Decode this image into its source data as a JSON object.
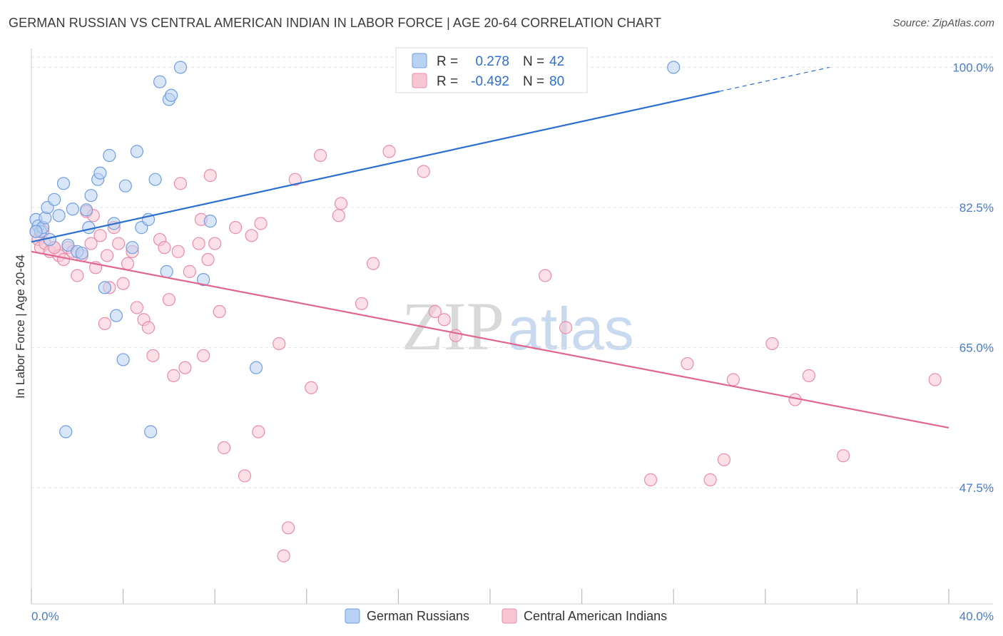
{
  "title": "GERMAN RUSSIAN VS CENTRAL AMERICAN INDIAN IN LABOR FORCE | AGE 20-64 CORRELATION CHART",
  "source": "Source: ZipAtlas.com",
  "watermark": {
    "zip": "ZIP",
    "atlas": "atlas"
  },
  "colors": {
    "blue_fill": "#b9d1f3",
    "blue_stroke": "#6f9fe0",
    "blue_line": "#2b6fcf",
    "pink_fill": "#f7c6d5",
    "pink_stroke": "#e98daa",
    "pink_line": "#e06690",
    "tick": "#4a7cc8",
    "grid": "#e3e3e3"
  },
  "legend": {
    "rows": [
      {
        "r_label": "R =",
        "r_value": "0.278",
        "n_label": "N =",
        "n_value": "42"
      },
      {
        "r_label": "R =",
        "r_value": "-0.492",
        "n_label": "N =",
        "n_value": "80"
      }
    ]
  },
  "chart_data": {
    "type": "scatter",
    "ylabel": "In Labor Force | Age 20-64",
    "xlim": [
      0,
      40
    ],
    "ylim": [
      33,
      102
    ],
    "y_ticks": [
      {
        "value": 100,
        "label": "100.0%"
      },
      {
        "value": 82.5,
        "label": "82.5%"
      },
      {
        "value": 65,
        "label": "65.0%"
      },
      {
        "value": 47.5,
        "label": "47.5%"
      }
    ],
    "x_ticks_labels": [
      {
        "value": 0,
        "label": "0.0%"
      },
      {
        "value": 40,
        "label": "40.0%"
      }
    ],
    "x_minor_ticks": [
      0,
      4,
      8,
      12,
      16,
      20,
      24,
      28,
      32,
      36,
      40
    ],
    "grid": true,
    "legend_position": "top-center",
    "series": [
      {
        "name": "German Russians",
        "trend": {
          "x0": 0,
          "y0": 78.2,
          "x1": 30,
          "y1": 97.0,
          "dash_to_x": 34.8,
          "dash_to_y": 100.0
        },
        "points": [
          [
            0.2,
            81.0
          ],
          [
            0.3,
            80.2
          ],
          [
            0.4,
            79.5
          ],
          [
            0.5,
            80.0
          ],
          [
            0.6,
            81.2
          ],
          [
            0.7,
            82.5
          ],
          [
            0.8,
            78.5
          ],
          [
            1.0,
            83.5
          ],
          [
            1.2,
            81.5
          ],
          [
            1.4,
            85.5
          ],
          [
            1.6,
            77.8
          ],
          [
            1.8,
            82.3
          ],
          [
            2.0,
            77.0
          ],
          [
            2.2,
            76.8
          ],
          [
            2.4,
            82.2
          ],
          [
            2.5,
            80.0
          ],
          [
            2.6,
            84.0
          ],
          [
            2.9,
            86.0
          ],
          [
            3.0,
            86.8
          ],
          [
            3.2,
            72.5
          ],
          [
            3.4,
            89.0
          ],
          [
            3.6,
            80.5
          ],
          [
            3.7,
            69.0
          ],
          [
            4.0,
            63.5
          ],
          [
            4.1,
            85.2
          ],
          [
            4.4,
            77.5
          ],
          [
            4.6,
            89.5
          ],
          [
            4.8,
            80.0
          ],
          [
            5.1,
            81.0
          ],
          [
            5.2,
            54.5
          ],
          [
            5.4,
            86.0
          ],
          [
            5.6,
            98.2
          ],
          [
            5.9,
            74.5
          ],
          [
            6.0,
            96.0
          ],
          [
            6.1,
            96.5
          ],
          [
            6.5,
            100.0
          ],
          [
            7.5,
            73.5
          ],
          [
            7.8,
            80.8
          ],
          [
            9.8,
            62.5
          ],
          [
            28.0,
            100.0
          ],
          [
            1.5,
            54.5
          ],
          [
            0.2,
            79.5
          ]
        ]
      },
      {
        "name": "Central American Indians",
        "trend": {
          "x0": 0,
          "y0": 77.0,
          "x1": 40,
          "y1": 55.0
        },
        "points": [
          [
            0.2,
            79.5
          ],
          [
            0.3,
            78.5
          ],
          [
            0.4,
            77.5
          ],
          [
            0.5,
            80.0
          ],
          [
            0.6,
            78.0
          ],
          [
            0.8,
            77.0
          ],
          [
            1.0,
            77.5
          ],
          [
            1.2,
            76.5
          ],
          [
            1.4,
            76.0
          ],
          [
            1.6,
            77.5
          ],
          [
            1.8,
            77.0
          ],
          [
            2.0,
            74.0
          ],
          [
            2.2,
            76.5
          ],
          [
            2.4,
            82.0
          ],
          [
            2.6,
            78.0
          ],
          [
            2.7,
            81.5
          ],
          [
            2.8,
            75.0
          ],
          [
            3.0,
            79.0
          ],
          [
            3.2,
            68.0
          ],
          [
            3.3,
            76.5
          ],
          [
            3.4,
            72.5
          ],
          [
            3.6,
            80.0
          ],
          [
            3.8,
            78.0
          ],
          [
            4.0,
            73.0
          ],
          [
            4.2,
            75.5
          ],
          [
            4.4,
            77.0
          ],
          [
            4.6,
            70.0
          ],
          [
            4.9,
            68.5
          ],
          [
            5.1,
            67.5
          ],
          [
            5.3,
            64.0
          ],
          [
            5.6,
            78.5
          ],
          [
            5.8,
            77.5
          ],
          [
            6.0,
            71.0
          ],
          [
            6.2,
            61.5
          ],
          [
            6.4,
            77.0
          ],
          [
            6.5,
            85.5
          ],
          [
            6.7,
            62.5
          ],
          [
            6.9,
            74.5
          ],
          [
            7.3,
            78.0
          ],
          [
            7.4,
            81.0
          ],
          [
            7.5,
            64.0
          ],
          [
            7.7,
            76.0
          ],
          [
            7.8,
            86.5
          ],
          [
            8.0,
            78.0
          ],
          [
            8.2,
            69.5
          ],
          [
            8.4,
            52.5
          ],
          [
            8.9,
            80.0
          ],
          [
            9.3,
            49.0
          ],
          [
            9.6,
            79.0
          ],
          [
            9.9,
            54.5
          ],
          [
            10.0,
            80.5
          ],
          [
            10.8,
            65.5
          ],
          [
            11.2,
            42.5
          ],
          [
            11.5,
            86.0
          ],
          [
            12.2,
            60.0
          ],
          [
            12.6,
            89.0
          ],
          [
            13.4,
            81.5
          ],
          [
            13.5,
            83.0
          ],
          [
            14.4,
            70.5
          ],
          [
            14.9,
            75.5
          ],
          [
            15.6,
            89.5
          ],
          [
            17.1,
            87.0
          ],
          [
            17.6,
            69.5
          ],
          [
            18.0,
            68.5
          ],
          [
            18.5,
            66.5
          ],
          [
            22.4,
            74.0
          ],
          [
            23.3,
            67.5
          ],
          [
            27.0,
            48.5
          ],
          [
            28.6,
            63.0
          ],
          [
            29.6,
            48.5
          ],
          [
            30.2,
            51.0
          ],
          [
            30.6,
            61.0
          ],
          [
            32.3,
            65.5
          ],
          [
            33.3,
            58.5
          ],
          [
            33.9,
            61.5
          ],
          [
            35.4,
            51.5
          ],
          [
            39.4,
            61.0
          ],
          [
            11.0,
            39.0
          ],
          [
            1.0,
            77.5
          ],
          [
            0.5,
            79.5
          ]
        ]
      }
    ]
  }
}
